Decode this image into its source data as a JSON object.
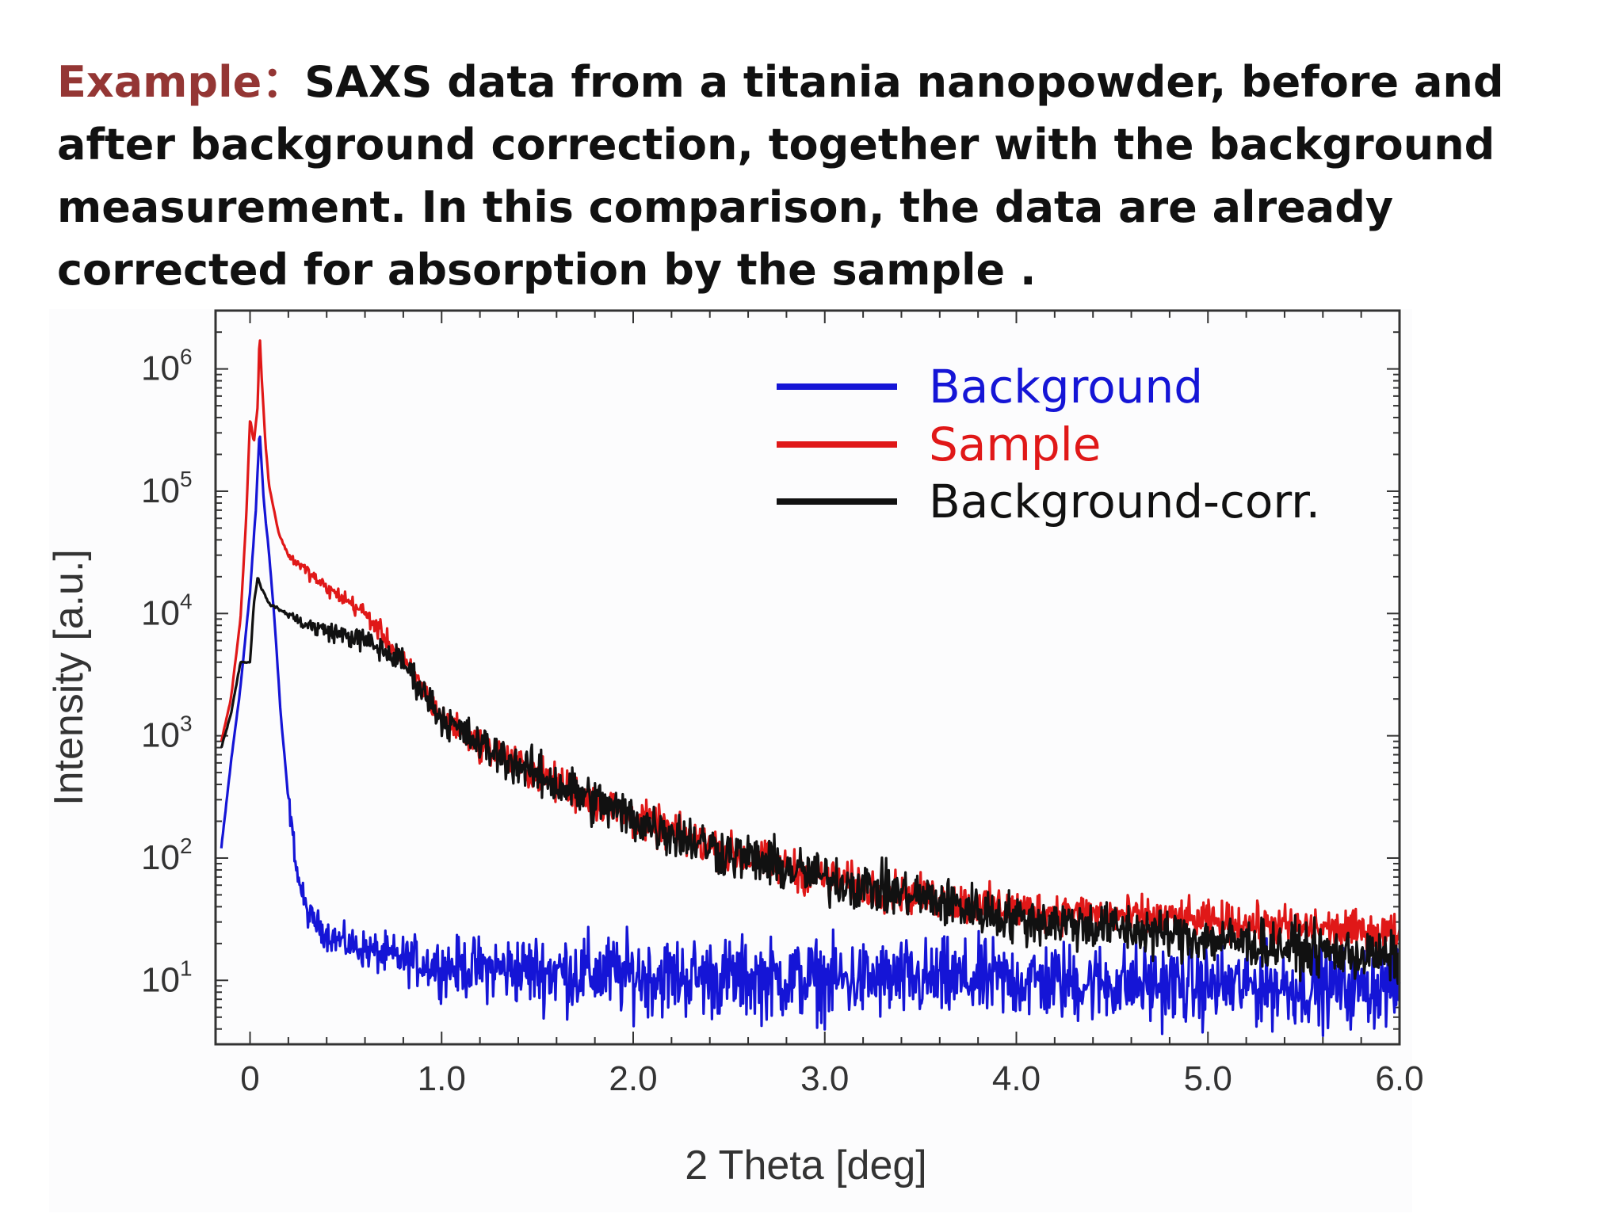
{
  "caption": {
    "label": "Example：",
    "text": "SAXS data from a titania nanopowder, before and after background correction, together with the background measurement. In this comparison, the data are already corrected for absorption by the sample ."
  },
  "chart_data": {
    "type": "line",
    "title": "",
    "xlabel": "2 Theta [deg]",
    "ylabel": "Intensity [a.u.]",
    "xlim": [
      -0.18,
      6.0
    ],
    "ylim": [
      3,
      3000000
    ],
    "yscale": "log",
    "xticks": [
      "0",
      "1.0",
      "2.0",
      "3.0",
      "4.0",
      "5.0",
      "6.0"
    ],
    "xtick_values": [
      0,
      1,
      2,
      3,
      4,
      5,
      6
    ],
    "yticks": [
      {
        "base": "10",
        "exp": "1",
        "value": 10
      },
      {
        "base": "10",
        "exp": "2",
        "value": 100
      },
      {
        "base": "10",
        "exp": "3",
        "value": 1000
      },
      {
        "base": "10",
        "exp": "4",
        "value": 10000
      },
      {
        "base": "10",
        "exp": "5",
        "value": 100000
      },
      {
        "base": "10",
        "exp": "6",
        "value": 1000000
      }
    ],
    "grid": false,
    "legend_position": "top-right",
    "series": [
      {
        "name": "Background",
        "color": "#1515d6",
        "noise": 0.16,
        "x": [
          -0.15,
          -0.1,
          -0.05,
          0.0,
          0.03,
          0.05,
          0.07,
          0.1,
          0.13,
          0.16,
          0.2,
          0.25,
          0.3,
          0.4,
          0.5,
          0.7,
          1.0,
          1.5,
          2.0,
          3.0,
          4.0,
          5.0,
          5.5,
          6.0
        ],
        "y": [
          120,
          600,
          2500,
          15000,
          70000,
          320000,
          90000,
          30000,
          8000,
          1500,
          300,
          70,
          35,
          24,
          20,
          16,
          13,
          12,
          11,
          10,
          10,
          9,
          9,
          9
        ]
      },
      {
        "name": "Sample",
        "color": "#e01818",
        "noise": 0.08,
        "x": [
          -0.15,
          -0.1,
          -0.05,
          -0.02,
          0.0,
          0.02,
          0.04,
          0.05,
          0.06,
          0.08,
          0.1,
          0.15,
          0.2,
          0.3,
          0.4,
          0.5,
          0.6,
          0.7,
          0.8,
          0.9,
          1.0,
          1.2,
          1.5,
          2.0,
          2.5,
          3.0,
          3.5,
          4.0,
          4.5,
          5.0,
          5.5,
          6.0
        ],
        "y": [
          900,
          2000,
          9000,
          60000,
          400000,
          250000,
          500000,
          2000000,
          900000,
          250000,
          110000,
          45000,
          30000,
          22000,
          16000,
          13000,
          10000,
          6500,
          4000,
          2500,
          1400,
          850,
          480,
          210,
          110,
          68,
          48,
          38,
          34,
          30,
          27,
          24
        ]
      },
      {
        "name": "Background-corr.",
        "color": "#111111",
        "noise": 0.1,
        "x": [
          -0.15,
          -0.1,
          -0.05,
          0.0,
          0.02,
          0.04,
          0.06,
          0.1,
          0.3,
          0.6,
          0.8,
          1.0,
          1.2,
          1.5,
          2.0,
          2.5,
          3.0,
          3.5,
          4.0,
          4.5,
          5.0,
          5.5,
          6.0
        ],
        "y": [
          800,
          1500,
          4000,
          4000,
          12000,
          20000,
          16000,
          12000,
          8000,
          6000,
          4000,
          1400,
          850,
          480,
          210,
          110,
          68,
          48,
          32,
          27,
          22,
          18,
          15
        ]
      }
    ]
  }
}
